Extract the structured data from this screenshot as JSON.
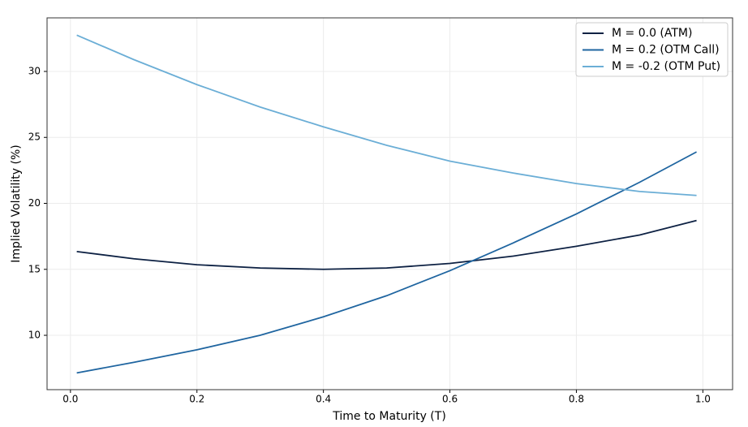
{
  "chart_data": {
    "type": "line",
    "x_label": "Time to Maturity (T)",
    "y_label": "Implied Volatility (%)",
    "x": [
      0.01,
      0.1,
      0.2,
      0.3,
      0.4,
      0.5,
      0.6,
      0.7,
      0.8,
      0.9,
      0.99
    ],
    "series": [
      {
        "name": "M = 0.0 (ATM)",
        "color": "#0d2143",
        "values": [
          16.35,
          15.8,
          15.35,
          15.1,
          15.0,
          15.1,
          15.45,
          16.0,
          16.75,
          17.6,
          18.7
        ]
      },
      {
        "name": "M = 0.2 (OTM Call)",
        "color": "#1f65a0",
        "values": [
          7.15,
          7.95,
          8.9,
          10.0,
          11.4,
          13.0,
          14.9,
          17.0,
          19.2,
          21.6,
          23.9
        ]
      },
      {
        "name": "M = -0.2 (OTM Put)",
        "color": "#6baed6",
        "values": [
          32.75,
          30.9,
          29.0,
          27.3,
          25.8,
          24.4,
          23.2,
          22.3,
          21.5,
          20.9,
          20.6
        ]
      }
    ],
    "xlim": [
      -0.037,
      1.047
    ],
    "ylim": [
      5.88,
      34.06
    ],
    "xticks": [
      {
        "value": 0,
        "label": "0.0"
      },
      0.2,
      0.4,
      0.6,
      0.8,
      {
        "value": 1,
        "label": "1.0"
      }
    ],
    "yticks": [
      10,
      15,
      20,
      25,
      30
    ],
    "grid": true,
    "legend": "upper-right"
  }
}
